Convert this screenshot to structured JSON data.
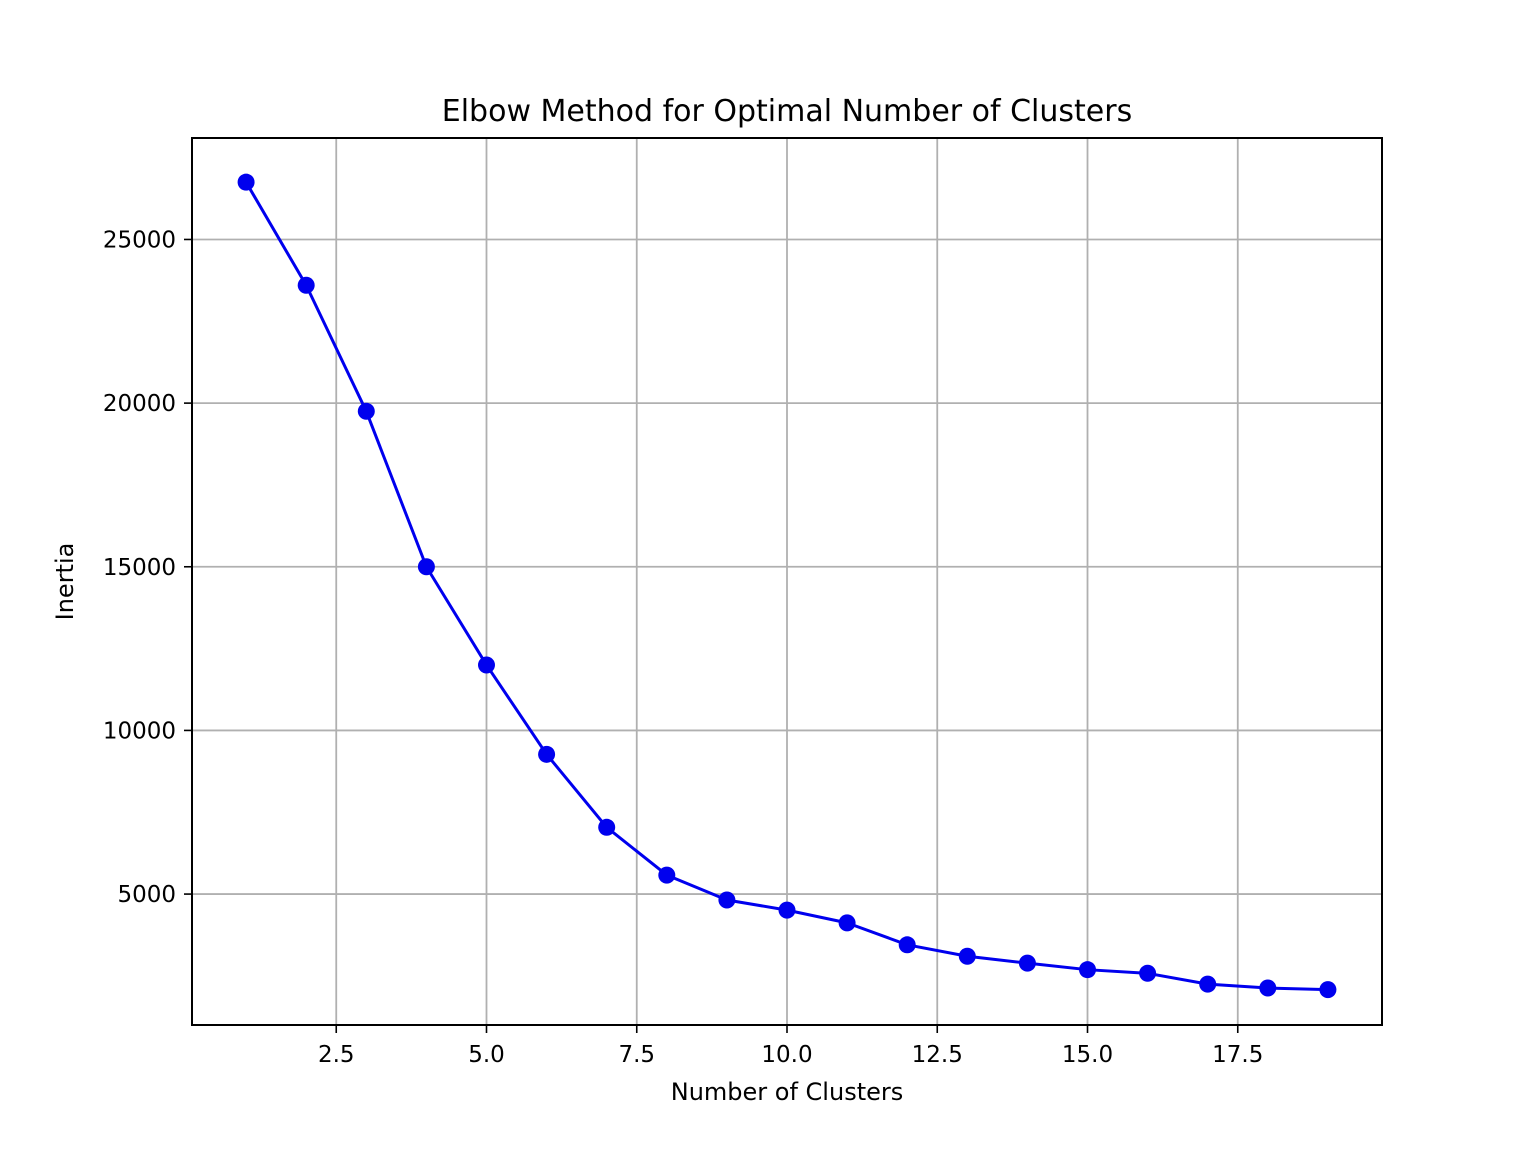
{
  "chart_data": {
    "type": "line",
    "title": "Elbow Method for Optimal Number of Clusters",
    "xlabel": "Number of Clusters",
    "ylabel": "Inertia",
    "xlim": [
      0.1,
      19.9
    ],
    "ylim": [
      1000,
      28100
    ],
    "x_ticks": [
      2.5,
      5.0,
      7.5,
      10.0,
      12.5,
      15.0,
      17.5
    ],
    "x_tick_labels": [
      "2.5",
      "5.0",
      "7.5",
      "10.0",
      "12.5",
      "15.0",
      "17.5"
    ],
    "y_ticks": [
      5000,
      10000,
      15000,
      20000,
      25000
    ],
    "y_tick_labels": [
      "5000",
      "10000",
      "15000",
      "20000",
      "25000"
    ],
    "grid": true,
    "series": [
      {
        "color": "#0000ee",
        "marker": "circle",
        "x": [
          1,
          2,
          3,
          4,
          5,
          6,
          7,
          8,
          9,
          10,
          11,
          12,
          13,
          14,
          15,
          16,
          17,
          18,
          19
        ],
        "y": [
          26750,
          23600,
          19750,
          15000,
          12000,
          9270,
          7040,
          5580,
          4820,
          4510,
          4120,
          3450,
          3100,
          2890,
          2690,
          2580,
          2250,
          2130,
          2080
        ]
      }
    ]
  }
}
